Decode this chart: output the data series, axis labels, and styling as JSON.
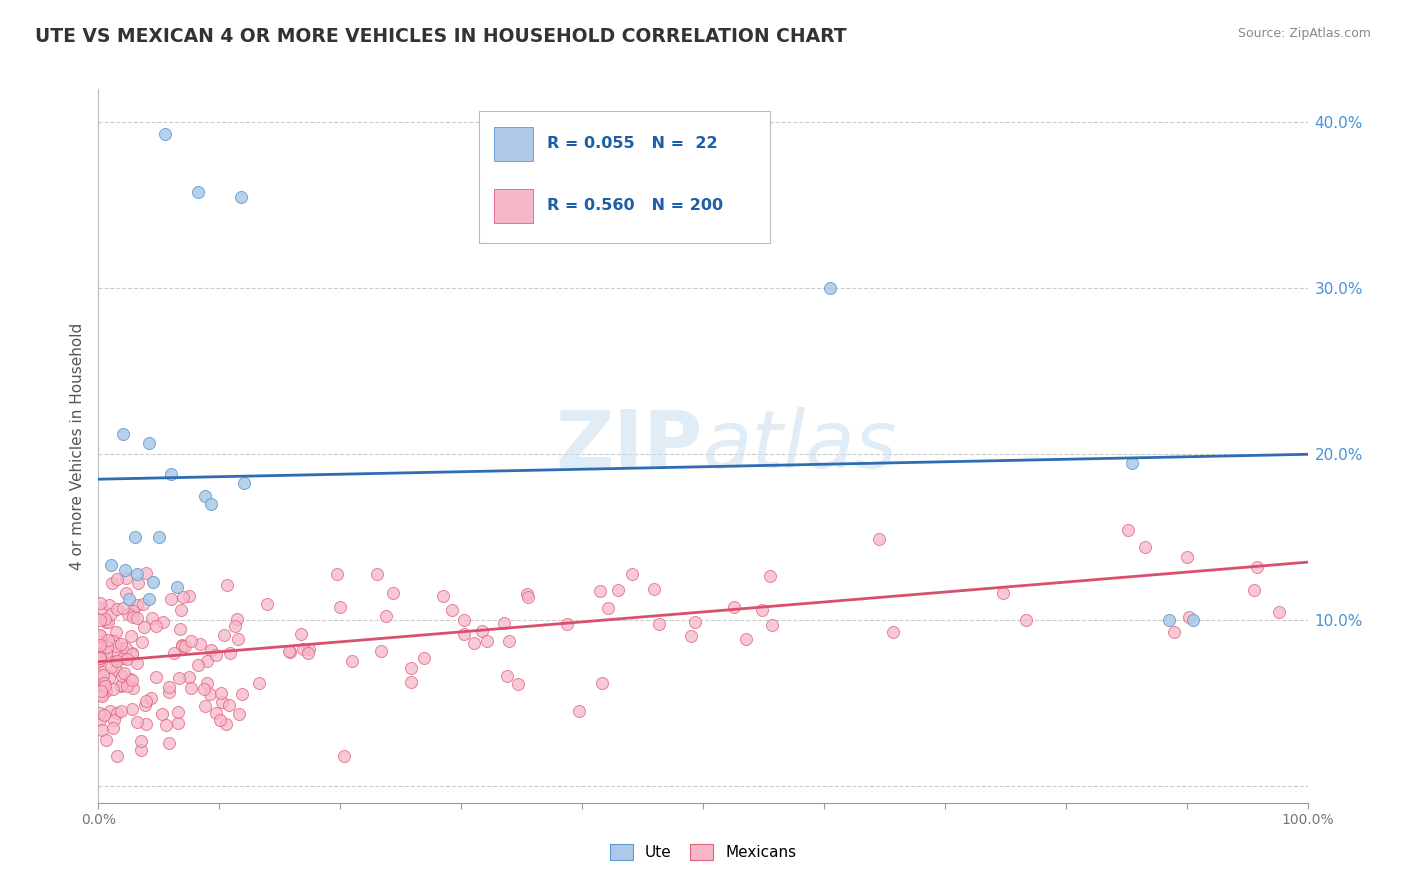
{
  "title": "UTE VS MEXICAN 4 OR MORE VEHICLES IN HOUSEHOLD CORRELATION CHART",
  "source": "Source: ZipAtlas.com",
  "ylabel": "4 or more Vehicles in Household",
  "xlim": [
    0.0,
    1.0
  ],
  "ylim": [
    -0.01,
    0.42
  ],
  "xtick_values": [
    0.0,
    0.1,
    0.2,
    0.3,
    0.4,
    0.5,
    0.6,
    0.7,
    0.8,
    0.9,
    1.0
  ],
  "xtick_labels": [
    "0.0%",
    "",
    "",
    "",
    "",
    "",
    "",
    "",
    "",
    "",
    "100.0%"
  ],
  "ytick_values": [
    0.0,
    0.1,
    0.2,
    0.3,
    0.4
  ],
  "right_ytick_values": [
    0.1,
    0.2,
    0.3,
    0.4
  ],
  "right_ytick_labels": [
    "10.0%",
    "20.0%",
    "30.0%",
    "40.0%"
  ],
  "ute_color": "#adc8e8",
  "ute_edge_color": "#5b9bd5",
  "mexican_color": "#f5b8c9",
  "mexican_edge_color": "#e0607a",
  "ute_line_color": "#2e6db4",
  "mexican_line_color": "#d94f6e",
  "R_ute": 0.055,
  "N_ute": 22,
  "R_mexican": 0.56,
  "N_mexican": 200,
  "watermark_zip": "ZIP",
  "watermark_atlas": "atlas",
  "background_color": "#ffffff",
  "grid_color": "#cccccc",
  "ute_line_x0": 0.0,
  "ute_line_y0": 0.185,
  "ute_line_x1": 1.0,
  "ute_line_y1": 0.2,
  "mex_line_x0": 0.0,
  "mex_line_y0": 0.075,
  "mex_line_x1": 1.0,
  "mex_line_y1": 0.135
}
